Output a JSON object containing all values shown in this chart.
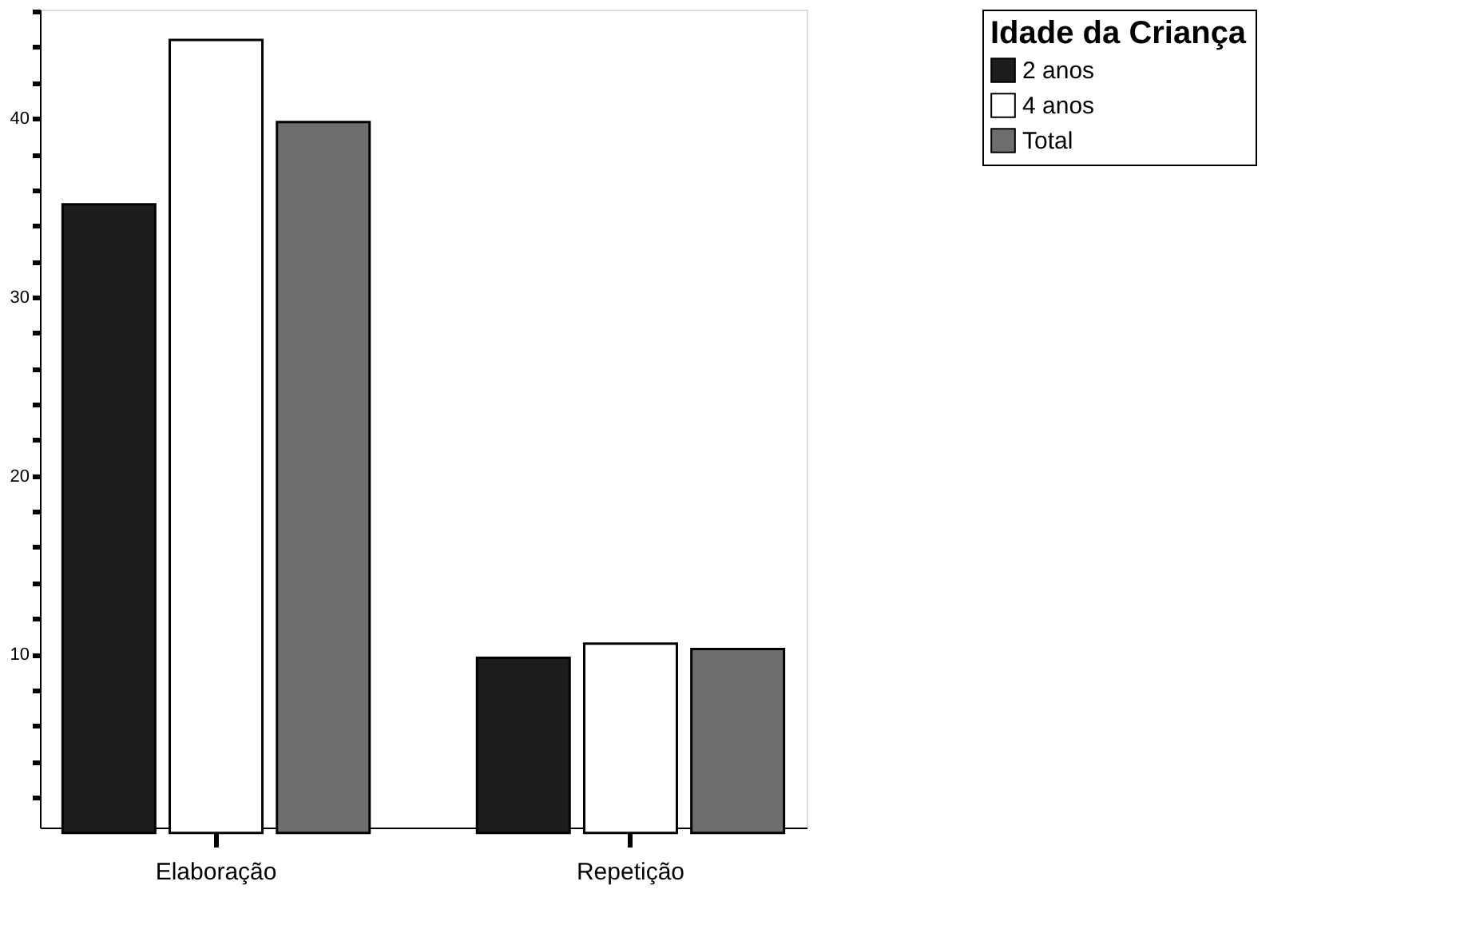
{
  "chart_data": {
    "type": "bar",
    "legend_title": "Idade da Criança",
    "legend": "top right",
    "categories": [
      "Elaboração",
      "Repetição"
    ],
    "series": [
      {
        "name": "2 anos",
        "color": "#1c1c1c",
        "values": [
          35.2,
          9.8
        ]
      },
      {
        "name": "4 anos",
        "color": "#ffffff",
        "values": [
          44.4,
          10.6
        ]
      },
      {
        "name": "Total",
        "color": "#6e6e6e",
        "values": [
          39.8,
          10.3
        ]
      }
    ],
    "ylim": [
      0.3,
      46.1
    ],
    "yticks": [
      {
        "value": 2,
        "label": null
      },
      {
        "value": 4,
        "label": null
      },
      {
        "value": 6,
        "label": null
      },
      {
        "value": 8,
        "label": null
      },
      10,
      {
        "value": 12,
        "label": null
      },
      {
        "value": 14,
        "label": null
      },
      {
        "value": 16,
        "label": null
      },
      {
        "value": 18,
        "label": null
      },
      20,
      {
        "value": 22,
        "label": null
      },
      {
        "value": 24,
        "label": null
      },
      {
        "value": 26,
        "label": null
      },
      {
        "value": 28,
        "label": null
      },
      30,
      {
        "value": 32,
        "label": null
      },
      {
        "value": 34,
        "label": null
      },
      {
        "value": 36,
        "label": null
      },
      {
        "value": 38,
        "label": null
      },
      40,
      {
        "value": 42,
        "label": null
      },
      {
        "value": 44,
        "label": null
      },
      {
        "value": 46,
        "label": null
      }
    ],
    "grid": false
  }
}
